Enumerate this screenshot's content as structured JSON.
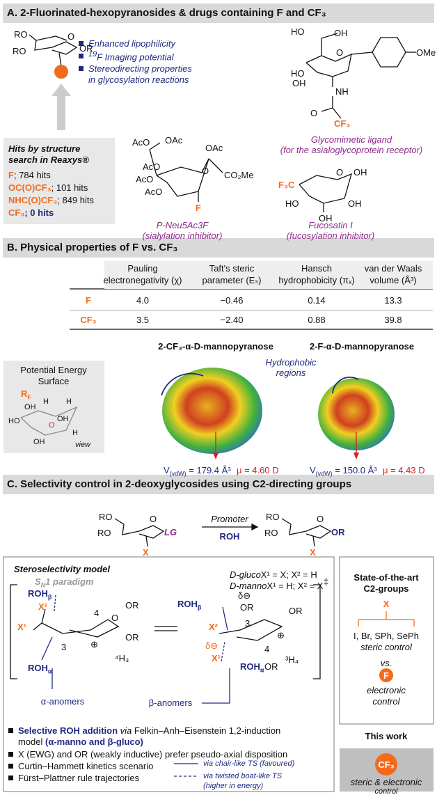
{
  "section_a": {
    "title": "A. 2-Fluorinated-hexopyranosides & drugs containing F and CF₃",
    "sugar_labels": [
      "RO",
      "RO",
      "O",
      "OR"
    ],
    "bullet_sup": "19",
    "bullets": [
      "Enhanced lipophilicity",
      "F Imaging potential",
      "Stereodirecting properties",
      "in glycosylation reactions"
    ],
    "glyco_labels": [
      "HO",
      "OH",
      "HO",
      "O",
      "OMe",
      "NH",
      "O",
      "OH",
      "CF₃"
    ],
    "glyco_caption": [
      "Glycomimetic ligand",
      "(for the asialoglycoprotein receptor)"
    ],
    "hits_title": [
      "Hits by structure",
      "search in Reaxys®"
    ],
    "hits": [
      {
        "key": "F",
        "rest": "; 784 hits"
      },
      {
        "key": "OC(O)CF₃",
        "rest": "; 101 hits"
      },
      {
        "key": "NHC(O)CF₃",
        "rest": "; 849 hits"
      },
      {
        "key": "CF₃",
        "rest": "; 0 hits"
      }
    ],
    "neu_labels": [
      "AcO",
      "OAc",
      "OAc",
      "AcO",
      "AcO",
      "O",
      "CO₂Me",
      "AcO",
      "F"
    ],
    "neu_caption": [
      "P-Neu5Ac3F",
      "(sialylation inhibitor)"
    ],
    "fuco_labels": [
      "F₃C",
      "O",
      "OH",
      "HO",
      "OH",
      "OH"
    ],
    "fuco_caption": [
      "Fucosatin I",
      "(fucosylation inhibitor)"
    ]
  },
  "section_b": {
    "title": "B. Physical properties of F vs. CF₃",
    "table": {
      "columns": [
        [
          "Pauling",
          "electronegativity (χ)"
        ],
        [
          "Taft's steric",
          "parameter (Eₛ)"
        ],
        [
          "Hansch",
          "hydrophobicity (πₓ)"
        ],
        [
          "van der Waals",
          "volume (Å³)"
        ]
      ],
      "rows": [
        [
          "F",
          "4.0",
          "−0.46",
          "0.14",
          "13.3"
        ],
        [
          "CF₃",
          "3.5",
          "−2.40",
          "0.88",
          "39.8"
        ]
      ]
    },
    "molecules": [
      {
        "name": "2-CF₃-α-D-mannopyranose",
        "v": "V",
        "v_sub": "(vdW)",
        "v_text": " = 179.4 Å³",
        "mu": "μ = 4.60 D"
      },
      {
        "name": "2-F-α-D-mannopyranose",
        "v": "V",
        "v_sub": "(vdW)",
        "v_text": " = 150.0 Å³",
        "mu": "μ = 4.43 D"
      }
    ],
    "hydrophobic": [
      "Hydrophobic",
      "regions"
    ],
    "pes_title": [
      "Potential Energy",
      "Surface"
    ],
    "pes_r": "R",
    "pes_r_sub": "F",
    "pes_labels": [
      "OH",
      "H",
      "OH",
      "H",
      "HO",
      "O",
      "OH",
      "H",
      "view"
    ]
  },
  "section_c": {
    "title": "C. Selectivity control in 2-deoxyglycosides using C2-directing groups",
    "start_labels": [
      "RO",
      "RO",
      "O",
      "LG",
      "X"
    ],
    "promoter": "Promoter",
    "roh": "ROH",
    "product_labels": [
      "RO",
      "RO",
      "O",
      "OR",
      "X"
    ],
    "model_title": "Steroselectivity model",
    "paradigm": [
      "S",
      "N",
      "1 paradigm"
    ],
    "gluco": [
      "D-gluco",
      "X¹ = X; X² = H"
    ],
    "manno": [
      "D-manno",
      "X¹ = H; X² = X"
    ],
    "roh_base": "ROH",
    "beta": "β",
    "alpha": "α",
    "ts_left": [
      "X²",
      "X¹",
      "4",
      "O",
      "OR",
      "OR",
      "3",
      "⊕",
      "⁴H₃"
    ],
    "ts_right": [
      "δ⊖",
      "OR",
      "3",
      "⊕",
      "OR",
      "X²",
      "δ⊖",
      "X¹",
      "4",
      "OR",
      "³H₄"
    ],
    "double_dagger": "‡",
    "anomers": [
      "α-anomers",
      "β-anomers"
    ],
    "bullet1": [
      "Selective ROH addition",
      " via ",
      "Felkin–Anh–Eisenstein 1,2-induction",
      "model ",
      "(α-manno and β-gluco)"
    ],
    "bullets": [
      "X (EWG) and OR (weakly inductive) prefer pseudo-axial disposition",
      "Curtin–Hammett kinetics scenario",
      "Fürst–Plattner rule trajectories"
    ],
    "legend": [
      "via chair-like TS (favoured)",
      "via twisted boat-like TS",
      "(higher in energy)"
    ],
    "side": {
      "title": [
        "State-of-the-art",
        "C2-groups"
      ],
      "x": "X",
      "groups": "I, Br, SPh, SePh",
      "steric": "steric control",
      "vs": "vs.",
      "f": "F",
      "electronic": [
        "electronic",
        "control"
      ],
      "this_work": "This work",
      "cf3": "CF₃",
      "both": [
        "steric & electronic",
        "control"
      ]
    }
  }
}
